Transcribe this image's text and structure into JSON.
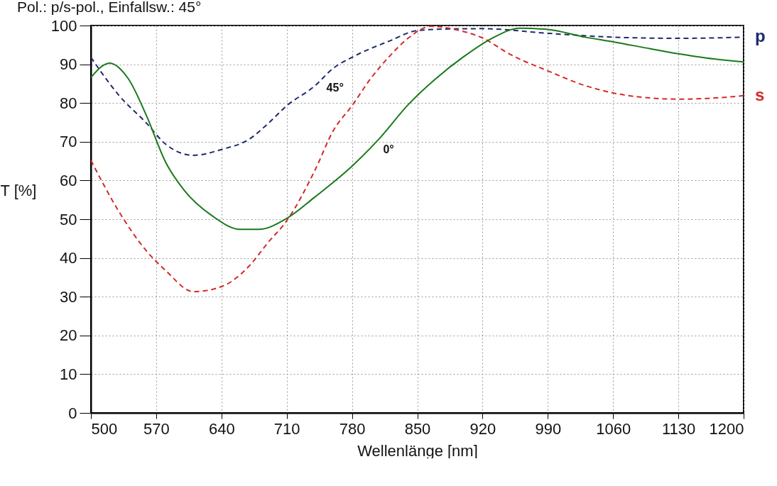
{
  "chart_data": {
    "type": "line",
    "title": "Pol.: p/s-pol., Einfallsw.: 45°",
    "xlabel": "Wellenlänge [nm]",
    "ylabel": "T [%]",
    "xlim": [
      500,
      1200
    ],
    "xticks": [
      500,
      570,
      640,
      710,
      780,
      850,
      920,
      990,
      1060,
      1130,
      1200
    ],
    "ylim": [
      0,
      100
    ],
    "yticks": [
      0,
      10,
      20,
      30,
      40,
      50,
      60,
      70,
      80,
      90,
      100
    ],
    "grid": true,
    "marker": "none",
    "series": [
      {
        "name": "p",
        "color": "#1f2a6e",
        "line_style": "dashed",
        "x": [
          500,
          530,
          560,
          580,
          610,
          640,
          670,
          690,
          710,
          740,
          760,
          780,
          820,
          850,
          880,
          920,
          990,
          1060,
          1130,
          1200
        ],
        "values": [
          91.8,
          82,
          74.7,
          69.4,
          66.5,
          68,
          70.7,
          74.7,
          79.3,
          84.4,
          89,
          91.8,
          96,
          98.7,
          99.1,
          99.2,
          98,
          97,
          96.7,
          97
        ]
      },
      {
        "name": "s",
        "color": "#d42a2a",
        "line_style": "dashed",
        "x": [
          500,
          530,
          560,
          580,
          610,
          640,
          670,
          690,
          710,
          740,
          760,
          780,
          800,
          820,
          840,
          865,
          890,
          920,
          950,
          990,
          1030,
          1060,
          1100,
          1130,
          1170,
          1200
        ],
        "values": [
          65.2,
          52,
          41.7,
          36.8,
          31.3,
          32.6,
          38,
          44,
          49.6,
          62.5,
          72.9,
          79.3,
          86.3,
          92,
          96.7,
          99.8,
          99,
          96.8,
          92.5,
          88.3,
          84.5,
          82.6,
          81.3,
          81,
          81.3,
          81.9
        ]
      },
      {
        "color": "#1a7a1a",
        "line_style": "solid",
        "x": [
          500,
          520,
          540,
          560,
          580,
          600,
          630,
          660,
          680,
          710,
          740,
          780,
          810,
          840,
          870,
          900,
          930,
          960,
          990,
          1030,
          1060,
          1100,
          1130,
          1160,
          1200
        ],
        "values": [
          86.6,
          90.3,
          86.3,
          76.5,
          64.8,
          57.5,
          50.9,
          47.4,
          47.4,
          50.2,
          55.7,
          63.7,
          71,
          79.5,
          86.3,
          92,
          96.7,
          99.3,
          99,
          97,
          95.8,
          94,
          92.7,
          91.6,
          90.6
        ]
      }
    ],
    "annotations": [
      "45°",
      "0°"
    ]
  }
}
